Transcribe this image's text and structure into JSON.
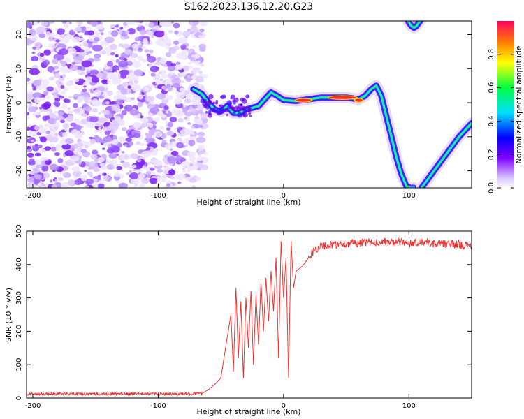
{
  "title": "S162.2023.136.12.20.G23",
  "chart_data": [
    {
      "type": "heatmap",
      "xlabel": "Height of straight line (km)",
      "ylabel": "Frequency (Hz)",
      "xlim": [
        -205,
        150
      ],
      "ylim": [
        -25,
        24
      ],
      "xticks": [
        -200,
        -100,
        0,
        100
      ],
      "yticks": [
        -20,
        -10,
        0,
        10,
        20
      ],
      "colorbar": {
        "label": "Normalized spectral amplitude",
        "range": [
          0.0,
          1.0
        ],
        "ticks": [
          "0.0",
          "0.2",
          "0.4",
          "0.6",
          "0.8"
        ],
        "colors": [
          "#ffffff",
          "#d6c4ff",
          "#8000ff",
          "#0000ff",
          "#00e0ff",
          "#00ff40",
          "#ffff00",
          "#ff8000",
          "#ff0060"
        ]
      },
      "noise_region": {
        "x_from": -205,
        "x_to": -68,
        "freq_from": -25,
        "freq_to": 24
      },
      "signal_trace": {
        "height_km": [
          -72,
          -65,
          -60,
          -55,
          -50,
          -45,
          -40,
          -35,
          -30,
          -25,
          -20,
          -15,
          -10,
          -5,
          0,
          10,
          20,
          30,
          40,
          50,
          60,
          65,
          70,
          74,
          78,
          82,
          86,
          90,
          94,
          98,
          101,
          104
        ],
        "frequency_hz": [
          4,
          2.5,
          0,
          -2,
          -2.5,
          -1,
          -3,
          -3,
          -2,
          -1.5,
          -1,
          1,
          3,
          2,
          0.8,
          0.5,
          1,
          1.5,
          1.5,
          1.5,
          1,
          2,
          4,
          5,
          2,
          -4,
          -10,
          -16,
          -21,
          -24.5,
          -25,
          -25
        ]
      },
      "peak_segments": [
        {
          "x_from": 10,
          "x_to": 22,
          "frequency_hz": 0.7
        },
        {
          "x_from": 36,
          "x_to": 58,
          "frequency_hz": 1.5
        },
        {
          "x_from": 57,
          "x_to": 63,
          "frequency_hz": 0.7
        }
      ],
      "secondary_traces": [
        {
          "height_km": [
            98,
            100,
            102,
            104,
            106,
            108,
            110,
            112
          ],
          "frequency_hz": [
            25,
            23.5,
            22.5,
            22,
            22.5,
            23.5,
            24.5,
            25.5
          ]
        },
        {
          "height_km": [
            110,
            120,
            130,
            140,
            150
          ],
          "frequency_hz": [
            -25,
            -20,
            -15,
            -10,
            -6
          ]
        }
      ]
    },
    {
      "type": "line",
      "xlabel": "Height of straight line (km)",
      "ylabel": "SNR (10 * v/v)",
      "xlim": [
        -205,
        150
      ],
      "ylim": [
        0,
        500
      ],
      "xticks": [
        -200,
        -100,
        0,
        100
      ],
      "yticks": [
        0,
        100,
        200,
        300,
        400,
        500
      ],
      "color": "#ee3333",
      "series": [
        {
          "x": [
            -205,
            -180,
            -160,
            -140,
            -120,
            -100,
            -80,
            -65,
            -60,
            -55,
            -50,
            -45,
            -42,
            -40,
            -38,
            -36,
            -34,
            -32,
            -30,
            -28,
            -26,
            -24,
            -22,
            -20,
            -18,
            -16,
            -14,
            -12,
            -10,
            -8,
            -6,
            -4,
            -2,
            0,
            2,
            4,
            6,
            8,
            10,
            15,
            20,
            25,
            30,
            40,
            60,
            80,
            100,
            110,
            120,
            140,
            150
          ],
          "y": [
            12,
            13,
            12,
            12,
            13,
            12,
            12,
            14,
            25,
            40,
            60,
            180,
            250,
            80,
            330,
            120,
            290,
            60,
            300,
            150,
            320,
            100,
            310,
            160,
            350,
            200,
            360,
            230,
            380,
            260,
            420,
            120,
            470,
            300,
            420,
            60,
            470,
            330,
            380,
            395,
            420,
            445,
            455,
            460,
            465,
            468,
            465,
            470,
            462,
            460,
            455
          ]
        }
      ]
    }
  ]
}
